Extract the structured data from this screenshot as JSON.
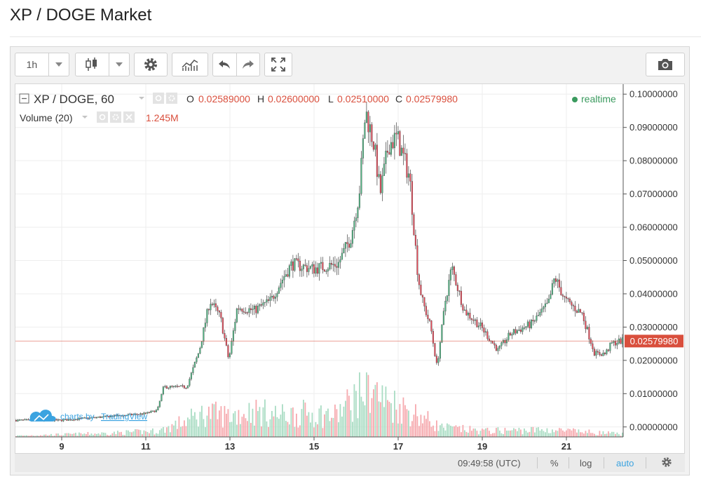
{
  "page": {
    "title": "XP / DOGE Market"
  },
  "toolbar": {
    "interval": "1h",
    "interval_menu_icon": "chevron-down-icon",
    "chart_type_icon": "candlestick-icon",
    "settings_icon": "gear-icon",
    "indicators_icon": "indicators-icon",
    "undo_icon": "undo-icon",
    "redo_icon": "redo-icon",
    "fullscreen_icon": "fullscreen-icon",
    "snapshot_icon": "camera-icon"
  },
  "legend": {
    "symbol": "XP / DOGE, 60",
    "o_label": "O",
    "o_value": "0.02589000",
    "h_label": "H",
    "h_value": "0.02600000",
    "l_label": "L",
    "l_value": "0.02510000",
    "c_label": "C",
    "c_value": "0.02579980",
    "volume_label": "Volume (20)",
    "volume_value": "1.245M",
    "realtime": "realtime"
  },
  "watermark": {
    "prefix": "charts by",
    "brand": "TradingView"
  },
  "status": {
    "time": "09:49:58 (UTC)",
    "percent": "%",
    "log": "log",
    "auto": "auto"
  },
  "colors": {
    "up": "#53b987",
    "down": "#eb4d5c",
    "up_vol": "#a9dcc3",
    "down_vol": "#f6a9ae",
    "last_price": "#d94f3d",
    "accent": "#3ba3e0"
  },
  "chart_data": {
    "type": "candlestick",
    "series_name": "XP / DOGE, 60",
    "y_axis": {
      "ticks": [
        "0.10000000",
        "0.09000000",
        "0.08000000",
        "0.07000000",
        "0.06000000",
        "0.05000000",
        "0.04000000",
        "0.03000000",
        "0.02000000",
        "0.01000000",
        "0.00000000"
      ],
      "ylim": [
        -0.003,
        0.103
      ]
    },
    "x_axis": {
      "ticks": [
        "9",
        "11",
        "13",
        "15",
        "17",
        "19",
        "21"
      ],
      "xlim": [
        7.9,
        22.35
      ]
    },
    "last_price": "0.02579980",
    "price_anchors": [
      [
        7.9,
        0.002
      ],
      [
        9.0,
        0.002
      ],
      [
        10.0,
        0.003
      ],
      [
        11.0,
        0.004
      ],
      [
        11.3,
        0.005
      ],
      [
        11.45,
        0.012
      ],
      [
        12.0,
        0.012
      ],
      [
        12.3,
        0.023
      ],
      [
        12.55,
        0.038
      ],
      [
        12.8,
        0.033
      ],
      [
        13.0,
        0.02
      ],
      [
        13.2,
        0.036
      ],
      [
        13.6,
        0.035
      ],
      [
        14.0,
        0.038
      ],
      [
        14.3,
        0.045
      ],
      [
        14.5,
        0.049
      ],
      [
        15.0,
        0.0475
      ],
      [
        15.6,
        0.049
      ],
      [
        15.9,
        0.057
      ],
      [
        16.1,
        0.07
      ],
      [
        16.25,
        0.095
      ],
      [
        16.45,
        0.085
      ],
      [
        16.6,
        0.07
      ],
      [
        16.8,
        0.085
      ],
      [
        17.0,
        0.087
      ],
      [
        17.3,
        0.075
      ],
      [
        17.5,
        0.045
      ],
      [
        17.6,
        0.038
      ],
      [
        17.8,
        0.03
      ],
      [
        17.95,
        0.018
      ],
      [
        18.15,
        0.038
      ],
      [
        18.3,
        0.048
      ],
      [
        18.6,
        0.035
      ],
      [
        19.0,
        0.03
      ],
      [
        19.4,
        0.023
      ],
      [
        19.7,
        0.028
      ],
      [
        20.2,
        0.031
      ],
      [
        20.6,
        0.037
      ],
      [
        20.75,
        0.045
      ],
      [
        21.0,
        0.038
      ],
      [
        21.4,
        0.034
      ],
      [
        21.7,
        0.022
      ],
      [
        21.95,
        0.022
      ],
      [
        22.1,
        0.025
      ],
      [
        22.3,
        0.0258
      ]
    ],
    "volume_anchors": [
      [
        7.9,
        0.05
      ],
      [
        10.0,
        0.15
      ],
      [
        11.3,
        0.25
      ],
      [
        11.6,
        0.45
      ],
      [
        12.4,
        1.0
      ],
      [
        13.0,
        0.9
      ],
      [
        13.5,
        1.1
      ],
      [
        14.2,
        0.9
      ],
      [
        14.8,
        1.0
      ],
      [
        15.5,
        0.9
      ],
      [
        16.3,
        2.2
      ],
      [
        16.6,
        1.6
      ],
      [
        17.0,
        1.3
      ],
      [
        17.5,
        0.9
      ],
      [
        18.0,
        0.4
      ],
      [
        19.0,
        0.25
      ],
      [
        20.5,
        0.3
      ],
      [
        21.5,
        0.2
      ],
      [
        22.3,
        0.12
      ]
    ],
    "volume_ylim": [
      0,
      2.4
    ]
  }
}
